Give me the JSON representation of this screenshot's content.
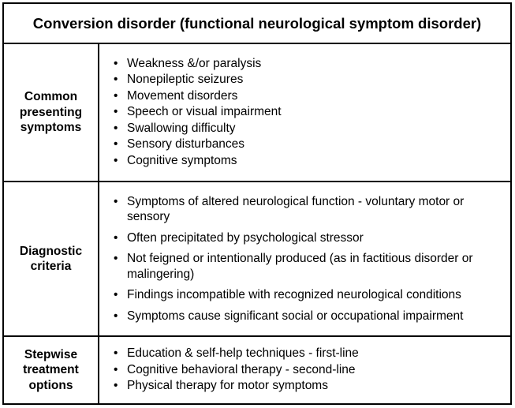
{
  "table": {
    "title": "Conversion disorder (functional neurological symptom disorder)",
    "rows": [
      {
        "label_lines": [
          "Common",
          "presenting",
          "symptoms"
        ],
        "items": [
          "Weakness &/or paralysis",
          "Nonepileptic seizures",
          "Movement disorders",
          "Speech or visual impairment",
          "Swallowing difficulty",
          "Sensory disturbances",
          "Cognitive symptoms"
        ]
      },
      {
        "label_lines": [
          "Diagnostic",
          "criteria"
        ],
        "items": [
          "Symptoms of altered neurological function - voluntary motor or sensory",
          "Often precipitated by psychological stressor",
          "Not feigned or intentionally produced (as in factitious disorder or malingering)",
          "Findings incompatible with recognized neurological conditions",
          "Symptoms cause significant social or occupational impairment"
        ]
      },
      {
        "label_lines": [
          "Stepwise",
          "treatment",
          "options"
        ],
        "items": [
          "Education & self-help techniques - first-line",
          "Cognitive behavioral therapy - second-line",
          "Physical therapy for motor symptoms"
        ]
      }
    ]
  }
}
